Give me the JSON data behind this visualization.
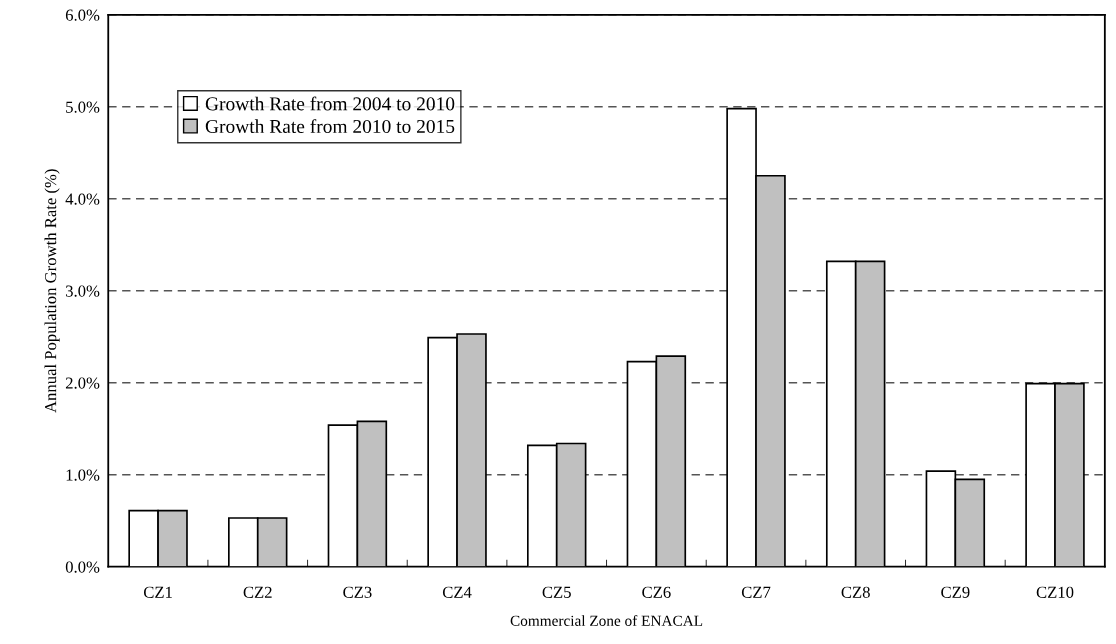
{
  "chart_data": {
    "type": "bar",
    "xlabel": "Commercial Zone of ENACAL",
    "ylabel": "Annual Population Growth Rate (%)",
    "categories": [
      "CZ1",
      "CZ2",
      "CZ3",
      "CZ4",
      "CZ5",
      "CZ6",
      "CZ7",
      "CZ8",
      "CZ9",
      "CZ10"
    ],
    "series": [
      {
        "name": "Growth Rate from 2004 to 2010",
        "color": "#ffffff",
        "values": [
          0.61,
          0.53,
          1.54,
          2.49,
          1.32,
          2.23,
          4.98,
          3.32,
          1.04,
          1.99
        ]
      },
      {
        "name": "Growth Rate from 2010 to 2015",
        "color": "#c0c0c0",
        "values": [
          0.61,
          0.53,
          1.58,
          2.53,
          1.34,
          2.29,
          4.25,
          3.32,
          0.95,
          1.99
        ]
      }
    ],
    "ylim": [
      0,
      6
    ],
    "yticks": [
      {
        "value": 0,
        "label": "0.0%"
      },
      {
        "value": 1,
        "label": "1.0%"
      },
      {
        "value": 2,
        "label": "2.0%"
      },
      {
        "value": 3,
        "label": "3.0%"
      },
      {
        "value": 4,
        "label": "4.0%"
      },
      {
        "value": 5,
        "label": "5.0%"
      },
      {
        "value": 6,
        "label": "6.0%"
      }
    ],
    "grid": "y",
    "line_style": "dashed",
    "legend": "top left"
  }
}
